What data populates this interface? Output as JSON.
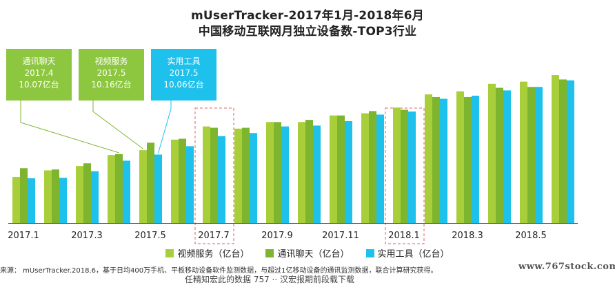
{
  "colors": {
    "video": "#a8cf3a",
    "chat": "#7db52e",
    "tools": "#1ec0ec",
    "highlight_box": "#e06060",
    "axis": "#555555",
    "callout_green": "#8dc63f",
    "callout_blue": "#1ec0ec"
  },
  "callouts": [
    {
      "name": "通讯聊天",
      "period": "2017.4",
      "value": "10.07亿台",
      "series_index": 1,
      "point_index": 3
    },
    {
      "name": "视频服务",
      "period": "2017.5",
      "value": "10.16亿台",
      "series_index": 0,
      "point_index": 4
    },
    {
      "name": "实用工具",
      "period": "2017.5",
      "value": "10.06亿台",
      "series_index": 2,
      "point_index": 4
    }
  ],
  "highlighted_categories": [
    6,
    12
  ],
  "footer": {
    "source": "来源： mUserTracker.2018.6，基于日均400万手机、平板移动设备软件监测数据，与超过1亿移动设备的通讯监测数据，联合计算研究获得。",
    "watermark": "www.767stock.com",
    "cut_text": "任精知宏此的数据 757 ·· 汉宏报期前段载下载"
  },
  "chart_data": {
    "type": "bar",
    "title": "mUserTracker-2017年1月-2018年6月",
    "subtitle": "中国移动互联网月独立设备数-TOP3行业",
    "categories": [
      "2017.1",
      "2017.2",
      "2017.3",
      "2017.4",
      "2017.5",
      "2017.6",
      "2017.7",
      "2017.8",
      "2017.9",
      "2017.10",
      "2017.11",
      "2017.12",
      "2018.1",
      "2018.2",
      "2018.3",
      "2018.4",
      "2018.5",
      "2018.6"
    ],
    "tick_labels": [
      "2017.1",
      "2017.3",
      "2017.5",
      "2017.7",
      "2017.9",
      "2017.11",
      "2018.1",
      "2018.3",
      "2018.5"
    ],
    "tick_label_indices": [
      0,
      2,
      4,
      6,
      8,
      10,
      12,
      14,
      16
    ],
    "series": [
      {
        "name": "视频服务（亿台）",
        "values": [
          9.55,
          9.7,
          9.8,
          10.05,
          10.16,
          10.4,
          10.7,
          10.65,
          10.8,
          10.8,
          10.95,
          11.0,
          11.13,
          11.43,
          11.5,
          11.67,
          11.72,
          11.87
        ]
      },
      {
        "name": "通讯聊天（亿台）",
        "values": [
          9.75,
          9.72,
          9.86,
          10.07,
          10.33,
          10.42,
          10.67,
          10.67,
          10.8,
          10.85,
          10.95,
          11.05,
          11.08,
          11.37,
          11.37,
          11.58,
          11.6,
          11.77
        ]
      },
      {
        "name": "实用工具（亿台）",
        "values": [
          9.52,
          9.53,
          9.68,
          9.92,
          10.06,
          10.25,
          10.48,
          10.55,
          10.7,
          10.72,
          10.82,
          10.97,
          11.04,
          11.33,
          11.4,
          11.52,
          11.6,
          11.75
        ]
      }
    ],
    "ylim": [
      8.5,
      12.2
    ],
    "grid": false,
    "legend_position": "bottom"
  }
}
